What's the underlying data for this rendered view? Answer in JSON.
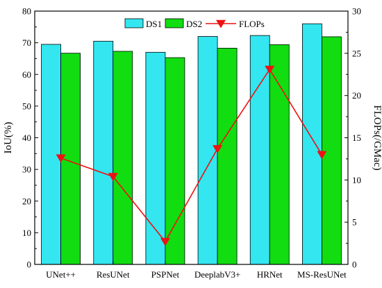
{
  "chart_data": {
    "type": "bar",
    "categories": [
      "UNet++",
      "ResUNet",
      "PSPNet",
      "DeeplabV3+",
      "HRNet",
      "MS-ResUNet"
    ],
    "series": [
      {
        "name": "DS1",
        "kind": "bar",
        "axis": "left",
        "color": "#33E6F0",
        "values": [
          69.5,
          70.5,
          67.0,
          72.0,
          72.3,
          76.0
        ]
      },
      {
        "name": "DS2",
        "kind": "bar",
        "axis": "left",
        "color": "#11DD11",
        "values": [
          66.7,
          67.3,
          65.3,
          68.3,
          69.4,
          71.9
        ]
      },
      {
        "name": "FLOPs",
        "kind": "line",
        "axis": "right",
        "color": "#EE1111",
        "values": [
          12.6,
          10.4,
          2.7,
          13.7,
          23.1,
          13.0
        ]
      }
    ],
    "xlabel": "",
    "ylabel": "IoU(%)",
    "y2label": "FLOPs(/GMac)",
    "ylim": [
      0,
      80
    ],
    "y2lim": [
      0,
      30
    ],
    "yticks": [
      0,
      10,
      20,
      30,
      40,
      50,
      60,
      70,
      80
    ],
    "y2ticks": [
      0,
      5,
      10,
      15,
      20,
      25,
      30
    ],
    "legend": {
      "position": "top",
      "entries": [
        "DS1",
        "DS2",
        "FLOPs"
      ]
    },
    "grid": false
  }
}
